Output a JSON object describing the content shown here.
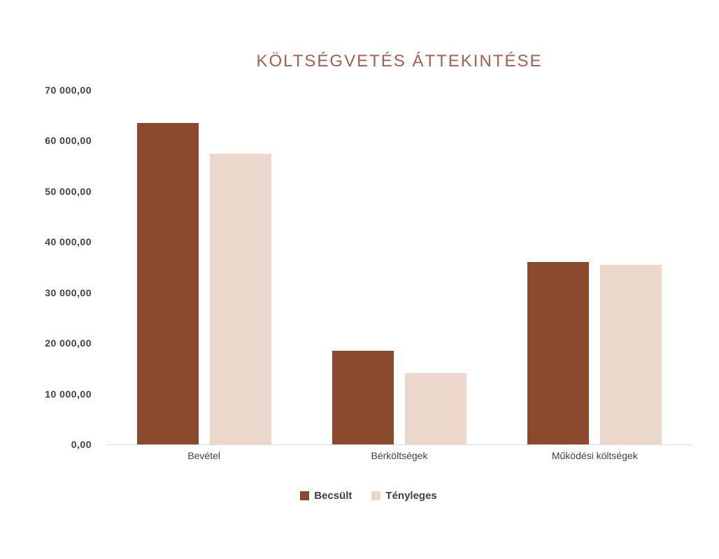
{
  "colors": {
    "background": "#ffffff",
    "title_text": "#a5604b",
    "axis_text": "#404040",
    "baseline": "#dcdcdc",
    "series_estimated": "#8b4a2e",
    "series_actual": "#ebd7cc"
  },
  "chart_data": {
    "type": "bar",
    "title": "KÖLTSÉGVETÉS ÁTTEKINTÉSE",
    "xlabel": "",
    "ylabel": "",
    "categories": [
      "Bevétel",
      "Bérköltségek",
      "Működési költségek"
    ],
    "series": [
      {
        "name": "Becsült",
        "color": "#8b4a2e",
        "values": [
          63500,
          18500,
          36000
        ]
      },
      {
        "name": "Tényleges",
        "color": "#ebd7cc",
        "values": [
          57500,
          14100,
          35500
        ]
      }
    ],
    "ylim": [
      0,
      70000
    ],
    "yticks": [
      {
        "value": 0,
        "label": "0,00"
      },
      {
        "value": 10000,
        "label": "10 000,00"
      },
      {
        "value": 20000,
        "label": "20 000,00"
      },
      {
        "value": 30000,
        "label": "30 000,00"
      },
      {
        "value": 40000,
        "label": "40 000,00"
      },
      {
        "value": 50000,
        "label": "50 000,00"
      },
      {
        "value": 60000,
        "label": "60 000,00"
      },
      {
        "value": 70000,
        "label": "70 000,00"
      }
    ],
    "grid": false,
    "legend_position": "bottom"
  }
}
